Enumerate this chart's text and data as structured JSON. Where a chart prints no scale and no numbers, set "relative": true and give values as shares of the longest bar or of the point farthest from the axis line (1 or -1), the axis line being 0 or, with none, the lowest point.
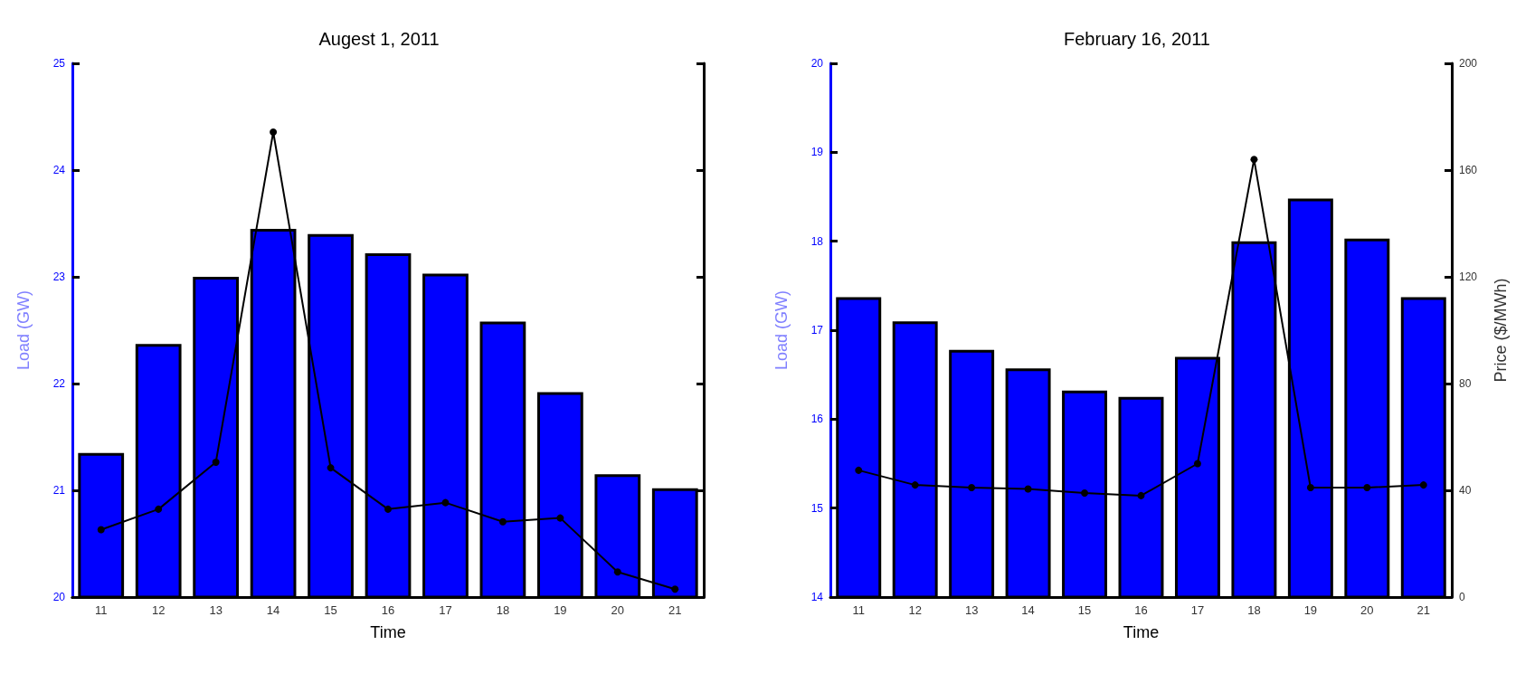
{
  "chart_data": [
    {
      "type": "bar",
      "title": "Augest 1, 2011",
      "xlabel": "Time",
      "ylabel": "Load (GW)",
      "categories": [
        "11",
        "12",
        "13",
        "14",
        "15",
        "16",
        "17",
        "18",
        "19",
        "20",
        "21"
      ],
      "series": [
        {
          "color": "#0000ff",
          "values": [
            21.35,
            22.37,
            23.0,
            23.45,
            23.4,
            23.22,
            23.03,
            22.58,
            21.92,
            21.15,
            21.02
          ]
        }
      ],
      "ylim": [
        20,
        25
      ],
      "yticks": [
        20,
        21,
        22,
        23,
        24,
        25
      ],
      "grid": false
    },
    {
      "type": "line",
      "relative": true,
      "categories": [
        null,
        null,
        null,
        null,
        null,
        null,
        null,
        null,
        null,
        null,
        null
      ],
      "series": [
        {
          "color": "#000000",
          "values": [
            0.145,
            0.189,
            0.29,
            1,
            0.278,
            0.189,
            0.203,
            0.162,
            0.17,
            0.054,
            0.017
          ]
        }
      ],
      "marker": "circle",
      "grid": false
    },
    {
      "type": "bar",
      "title": "February 16, 2011",
      "xlabel": "Time",
      "ylabel": "Load (GW)",
      "y2label": "Price ($/MWh)",
      "categories": [
        "11",
        "12",
        "13",
        "14",
        "15",
        "16",
        "17",
        "18",
        "19",
        "20",
        "21"
      ],
      "series": [
        {
          "color": "#0000ff",
          "values": [
            17.37,
            17.1,
            16.78,
            16.57,
            16.32,
            16.25,
            16.7,
            18.0,
            18.48,
            18.03,
            17.37
          ]
        },
        {
          "type": "line",
          "axis": "y2",
          "color": "#000000",
          "values": [
            47.5,
            42,
            41,
            40.5,
            39,
            38,
            50,
            164,
            41,
            41,
            42
          ]
        }
      ],
      "ylim": [
        14,
        20
      ],
      "yticks": [
        14,
        15,
        16,
        17,
        18,
        19,
        20
      ],
      "y2lim": [
        0,
        200
      ],
      "y2ticks": [
        0,
        40,
        80,
        120,
        160,
        200
      ],
      "marker": "circle",
      "grid": false
    }
  ]
}
